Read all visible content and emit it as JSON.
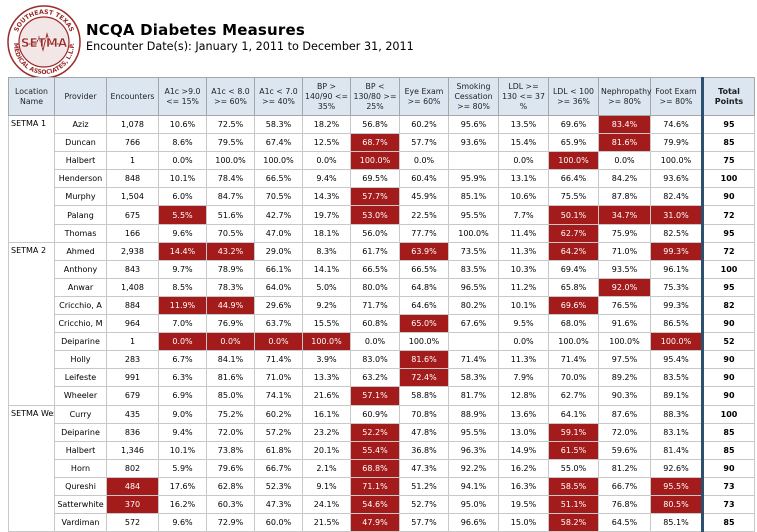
{
  "logo": {
    "ring_text": "SOUTHEAST TEXAS MEDICAL ASSOCIATES, L.L.P.",
    "center_text": "SETMA",
    "ring_color": "#9a2b2b"
  },
  "header": {
    "title": "NCQA Diabetes Measures",
    "subtitle": "Encounter Date(s): January 1, 2011 to December 31, 2011"
  },
  "highlight_color": "#a31b1b",
  "table": {
    "columns": [
      "Location Name",
      "Provider",
      "Encounters",
      "A1c >9.0 <= 15%",
      "A1c < 8.0 >= 60%",
      "A1c < 7.0 >= 40%",
      "BP > 140/90 <= 35%",
      "BP < 130/80 >= 25%",
      "Eye Exam >= 60%",
      "Smoking Cessation >= 80%",
      "LDL >= 130 <= 37 %",
      "LDL < 100 >= 36%",
      "Nephropathy >= 80%",
      "Foot Exam >= 80%",
      "Total Points"
    ],
    "groups": [
      {
        "location": "SETMA 1",
        "rows": [
          {
            "provider": "Aziz",
            "cells": [
              "1,078",
              "10.6%",
              "72.5%",
              "58.3%",
              "18.2%",
              "56.8%",
              "60.2%",
              "95.6%",
              "13.5%",
              "69.6%",
              "83.4%",
              "74.6%",
              "95"
            ],
            "hl": [
              10
            ]
          },
          {
            "provider": "Duncan",
            "cells": [
              "766",
              "8.6%",
              "79.5%",
              "67.4%",
              "12.5%",
              "68.7%",
              "57.7%",
              "93.6%",
              "15.4%",
              "65.9%",
              "81.6%",
              "79.9%",
              "85"
            ],
            "hl": [
              5,
              10
            ]
          },
          {
            "provider": "Halbert",
            "cells": [
              "1",
              "0.0%",
              "100.0%",
              "100.0%",
              "0.0%",
              "100.0%",
              "0.0%",
              "",
              "0.0%",
              "100.0%",
              "0.0%",
              "100.0%",
              "75"
            ],
            "hl": [
              5,
              9
            ]
          },
          {
            "provider": "Henderson",
            "cells": [
              "848",
              "10.1%",
              "78.4%",
              "66.5%",
              "9.4%",
              "69.5%",
              "60.4%",
              "95.9%",
              "13.1%",
              "66.4%",
              "84.2%",
              "93.6%",
              "100"
            ],
            "hl": []
          },
          {
            "provider": "Murphy",
            "cells": [
              "1,504",
              "6.0%",
              "84.7%",
              "70.5%",
              "14.3%",
              "57.7%",
              "45.9%",
              "85.1%",
              "10.6%",
              "75.5%",
              "87.8%",
              "82.4%",
              "90"
            ],
            "hl": [
              5
            ]
          },
          {
            "provider": "Palang",
            "cells": [
              "675",
              "5.5%",
              "51.6%",
              "42.7%",
              "19.7%",
              "53.0%",
              "22.5%",
              "95.5%",
              "7.7%",
              "50.1%",
              "34.7%",
              "31.0%",
              "72"
            ],
            "hl": [
              1,
              5,
              9,
              10,
              11
            ]
          },
          {
            "provider": "Thomas",
            "cells": [
              "166",
              "9.6%",
              "70.5%",
              "47.0%",
              "18.1%",
              "56.0%",
              "77.7%",
              "100.0%",
              "11.4%",
              "62.7%",
              "75.9%",
              "82.5%",
              "95"
            ],
            "hl": [
              9
            ]
          }
        ]
      },
      {
        "location": "SETMA 2",
        "rows": [
          {
            "provider": "Ahmed",
            "cells": [
              "2,938",
              "14.4%",
              "43.2%",
              "29.0%",
              "8.3%",
              "61.7%",
              "63.9%",
              "73.5%",
              "11.3%",
              "64.2%",
              "71.0%",
              "99.3%",
              "72"
            ],
            "hl": [
              1,
              2,
              6,
              9,
              11
            ]
          },
          {
            "provider": "Anthony",
            "cells": [
              "843",
              "9.7%",
              "78.9%",
              "66.1%",
              "14.1%",
              "66.5%",
              "66.5%",
              "83.5%",
              "10.3%",
              "69.4%",
              "93.5%",
              "96.1%",
              "100"
            ],
            "hl": []
          },
          {
            "provider": "Anwar",
            "cells": [
              "1,408",
              "8.5%",
              "78.3%",
              "64.0%",
              "5.0%",
              "80.0%",
              "64.8%",
              "96.5%",
              "11.2%",
              "65.8%",
              "92.0%",
              "75.3%",
              "95"
            ],
            "hl": [
              10
            ]
          },
          {
            "provider": "Cricchio, A",
            "cells": [
              "884",
              "11.9%",
              "44.9%",
              "29.6%",
              "9.2%",
              "71.7%",
              "64.6%",
              "80.2%",
              "10.1%",
              "69.6%",
              "76.5%",
              "99.3%",
              "82"
            ],
            "hl": [
              1,
              2,
              9
            ]
          },
          {
            "provider": "Cricchio, M",
            "cells": [
              "964",
              "7.0%",
              "76.9%",
              "63.7%",
              "15.5%",
              "60.8%",
              "65.0%",
              "67.6%",
              "9.5%",
              "68.0%",
              "91.6%",
              "86.5%",
              "90"
            ],
            "hl": [
              6
            ]
          },
          {
            "provider": "Deiparine",
            "cells": [
              "1",
              "0.0%",
              "0.0%",
              "0.0%",
              "100.0%",
              "0.0%",
              "100.0%",
              "",
              "0.0%",
              "100.0%",
              "100.0%",
              "100.0%",
              "52"
            ],
            "hl": [
              1,
              2,
              3,
              4,
              11
            ]
          },
          {
            "provider": "Holly",
            "cells": [
              "283",
              "6.7%",
              "84.1%",
              "71.4%",
              "3.9%",
              "83.0%",
              "81.6%",
              "71.4%",
              "11.3%",
              "71.4%",
              "97.5%",
              "95.4%",
              "90"
            ],
            "hl": [
              6
            ]
          },
          {
            "provider": "Leifeste",
            "cells": [
              "991",
              "6.3%",
              "81.6%",
              "71.0%",
              "13.3%",
              "63.2%",
              "72.4%",
              "58.3%",
              "7.9%",
              "70.0%",
              "89.2%",
              "83.5%",
              "90"
            ],
            "hl": [
              6
            ]
          },
          {
            "provider": "Wheeler",
            "cells": [
              "679",
              "6.9%",
              "85.0%",
              "74.1%",
              "21.6%",
              "57.1%",
              "58.8%",
              "81.7%",
              "12.8%",
              "62.7%",
              "90.3%",
              "89.1%",
              "90"
            ],
            "hl": [
              5
            ]
          }
        ]
      },
      {
        "location": "SETMA West",
        "rows": [
          {
            "provider": "Curry",
            "cells": [
              "435",
              "9.0%",
              "75.2%",
              "60.2%",
              "16.1%",
              "60.9%",
              "70.8%",
              "88.9%",
              "13.6%",
              "64.1%",
              "87.6%",
              "88.3%",
              "100"
            ],
            "hl": []
          },
          {
            "provider": "Deiparine",
            "cells": [
              "836",
              "9.4%",
              "72.0%",
              "57.2%",
              "23.2%",
              "52.2%",
              "47.8%",
              "95.5%",
              "13.0%",
              "59.1%",
              "72.0%",
              "83.1%",
              "85"
            ],
            "hl": [
              5,
              9
            ]
          },
          {
            "provider": "Halbert",
            "cells": [
              "1,346",
              "10.1%",
              "73.8%",
              "61.8%",
              "20.1%",
              "55.4%",
              "36.8%",
              "96.3%",
              "14.9%",
              "61.5%",
              "59.6%",
              "81.4%",
              "85"
            ],
            "hl": [
              5,
              9
            ]
          },
          {
            "provider": "Horn",
            "cells": [
              "802",
              "5.9%",
              "79.6%",
              "66.7%",
              "2.1%",
              "68.8%",
              "47.3%",
              "92.2%",
              "16.2%",
              "55.0%",
              "81.2%",
              "92.6%",
              "90"
            ],
            "hl": [
              5
            ]
          },
          {
            "provider": "Qureshi",
            "cells": [
              "484",
              "17.6%",
              "62.8%",
              "52.3%",
              "9.1%",
              "71.1%",
              "51.2%",
              "94.1%",
              "16.3%",
              "58.5%",
              "66.7%",
              "95.5%",
              "73"
            ],
            "hl": [
              0,
              5,
              9,
              11
            ]
          },
          {
            "provider": "Satterwhite",
            "cells": [
              "370",
              "16.2%",
              "60.3%",
              "47.3%",
              "24.1%",
              "54.6%",
              "52.7%",
              "95.0%",
              "19.5%",
              "51.1%",
              "76.8%",
              "80.5%",
              "73"
            ],
            "hl": [
              0,
              5,
              9,
              11
            ]
          },
          {
            "provider": "Vardiman",
            "cells": [
              "572",
              "9.6%",
              "72.9%",
              "60.0%",
              "21.5%",
              "47.9%",
              "57.7%",
              "96.6%",
              "15.0%",
              "58.2%",
              "64.5%",
              "85.1%",
              "85"
            ],
            "hl": [
              5,
              9
            ]
          }
        ]
      }
    ]
  }
}
